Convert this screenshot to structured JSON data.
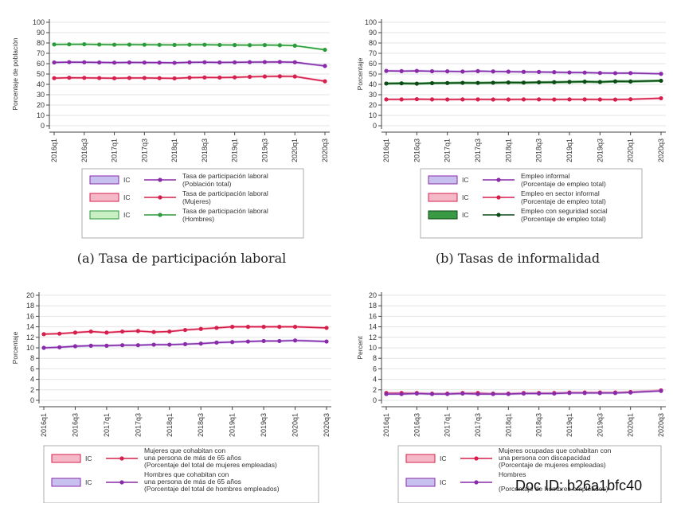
{
  "watermark": "Doc ID: b26a1bfc40",
  "chart_data": [
    {
      "type": "line",
      "caption": "(a) Tasa de participación laboral",
      "ylabel": "Porcentaje de población",
      "ylim": [
        0,
        100
      ],
      "yticks": [
        0,
        10,
        20,
        30,
        40,
        50,
        60,
        70,
        80,
        90,
        100
      ],
      "x": [
        "2016q1",
        "2016q2",
        "2016q3",
        "2016q4",
        "2017q1",
        "2017q2",
        "2017q3",
        "2017q4",
        "2018q1",
        "2018q2",
        "2018q3",
        "2018q4",
        "2019q1",
        "2019q2",
        "2019q3",
        "2019q4",
        "2020q1",
        "2020q3"
      ],
      "xticklabels": [
        "2016q1",
        "2016q3",
        "2017q1",
        "2017q3",
        "2018q1",
        "2018q3",
        "2019q1",
        "2019q3",
        "2020q1",
        "2020q3"
      ],
      "series": [
        {
          "name": "Tasa de participación laboral (Población total)",
          "line1": "Tasa de participación laboral",
          "line2": "(Población total)",
          "color": "#8a2aa8",
          "ci": "#c8c0ee",
          "values": [
            61.2,
            61.5,
            61.4,
            61.2,
            61.0,
            61.2,
            61.1,
            61.0,
            60.8,
            61.3,
            61.4,
            61.2,
            61.3,
            61.5,
            61.6,
            61.7,
            61.4,
            57.8
          ]
        },
        {
          "name": "Tasa de participación laboral (Mujeres)",
          "line1": "Tasa de participación laboral",
          "line2": "(Mujeres)",
          "color": "#d61f4c",
          "ci": "#f5b8c6",
          "values": [
            46.0,
            46.4,
            46.3,
            46.1,
            45.9,
            46.2,
            46.2,
            46.0,
            45.8,
            46.5,
            46.7,
            46.6,
            46.8,
            47.3,
            47.6,
            47.8,
            47.6,
            43.0
          ]
        },
        {
          "name": "Tasa de participación laboral (Hombres)",
          "line1": "Tasa de participación laboral",
          "line2": "(Hombres)",
          "color": "#2a9a3a",
          "ci": "#c8f0c4",
          "values": [
            78.6,
            78.7,
            78.8,
            78.5,
            78.3,
            78.4,
            78.3,
            78.2,
            78.1,
            78.3,
            78.3,
            78.1,
            78.0,
            77.9,
            78.0,
            77.8,
            77.4,
            73.4
          ]
        }
      ],
      "legend_ci_label": "IC"
    },
    {
      "type": "line",
      "caption": "(b) Tasas de informalidad",
      "ylabel": "Porcentaje",
      "ylim": [
        0,
        100
      ],
      "yticks": [
        0,
        10,
        20,
        30,
        40,
        50,
        60,
        70,
        80,
        90,
        100
      ],
      "x": [
        "2016q1",
        "2016q2",
        "2016q3",
        "2016q4",
        "2017q1",
        "2017q2",
        "2017q3",
        "2017q4",
        "2018q1",
        "2018q2",
        "2018q3",
        "2018q4",
        "2019q1",
        "2019q2",
        "2019q3",
        "2019q4",
        "2020q1",
        "2020q3"
      ],
      "xticklabels": [
        "2016q1",
        "2016q3",
        "2017q1",
        "2017q3",
        "2018q1",
        "2018q3",
        "2019q1",
        "2019q3",
        "2020q1",
        "2020q3"
      ],
      "series": [
        {
          "name": "Empleo informal (Porcentaje de empleo total)",
          "line1": "Empleo informal",
          "line2": "(Porcentaje de empleo total)",
          "color": "#8a2aa8",
          "ci": "#c8c0ee",
          "values": [
            53.0,
            52.8,
            53.0,
            52.7,
            52.6,
            52.4,
            52.8,
            52.5,
            52.3,
            52.1,
            52.0,
            51.8,
            51.5,
            51.4,
            51.0,
            50.8,
            50.9,
            50.2
          ]
        },
        {
          "name": "Empleo en sector informal (Porcentaje de empleo total)",
          "line1": "Empleo en sector informal",
          "line2": "(Porcentaje de empleo total)",
          "color": "#d61f4c",
          "ci": "#f5b8c6",
          "values": [
            25.5,
            25.5,
            25.7,
            25.5,
            25.4,
            25.5,
            25.5,
            25.4,
            25.4,
            25.5,
            25.5,
            25.4,
            25.5,
            25.5,
            25.4,
            25.3,
            25.6,
            26.6
          ]
        },
        {
          "name": "Empleo con seguridad social (Porcentaje de empleo total)",
          "line1": "Empleo con seguridad social",
          "line2": "(Porcentaje de empleo total)",
          "color": "#0c4a16",
          "ci": "#3a9a44",
          "values": [
            40.8,
            41.0,
            40.7,
            41.2,
            41.3,
            41.5,
            41.4,
            41.6,
            41.8,
            41.7,
            42.0,
            42.1,
            42.4,
            42.6,
            42.3,
            42.9,
            42.8,
            43.5
          ]
        }
      ],
      "legend_ci_label": "IC"
    },
    {
      "type": "line",
      "caption": "",
      "ylabel": "Porcentaje",
      "ylim": [
        0,
        20
      ],
      "yticks": [
        0,
        2,
        4,
        6,
        8,
        10,
        12,
        14,
        16,
        18,
        20
      ],
      "x": [
        "2016q1",
        "2016q2",
        "2016q3",
        "2016q4",
        "2017q1",
        "2017q2",
        "2017q3",
        "2017q4",
        "2018q1",
        "2018q2",
        "2018q3",
        "2018q4",
        "2019q1",
        "2019q2",
        "2019q3",
        "2019q4",
        "2020q1",
        "2020q3"
      ],
      "xticklabels": [
        "2016q1",
        "2016q3",
        "2017q1",
        "2017q3",
        "2018q1",
        "2018q3",
        "2019q1",
        "2019q3",
        "2020q1",
        "2020q3"
      ],
      "series": [
        {
          "name": "Mujeres que cohabitan con una persona de más de 65 años (Porcentaje del total de mujeres empleadas)",
          "line1": "Mujeres que cohabitan con",
          "line2": "una persona de más de 65 años",
          "line3": "(Porcentaje del total de mujeres empleadas)",
          "color": "#d61f4c",
          "ci": "#f5b8c6",
          "values": [
            12.6,
            12.7,
            12.9,
            13.1,
            12.9,
            13.1,
            13.2,
            13.0,
            13.1,
            13.4,
            13.6,
            13.8,
            14.0,
            14.0,
            14.0,
            14.0,
            14.0,
            13.8
          ]
        },
        {
          "name": "Hombres que cohabitan con una persona de más de 65 años (Porcentaje del total de hombres empleados)",
          "line1": "Hombres que cohabitan con",
          "line2": "una persona de más de 65 años",
          "line3": "(Porcentaje del total de hombres empleados)",
          "color": "#8a2aa8",
          "ci": "#c8c0ee",
          "values": [
            10.0,
            10.1,
            10.3,
            10.4,
            10.4,
            10.5,
            10.5,
            10.6,
            10.6,
            10.7,
            10.8,
            11.0,
            11.1,
            11.2,
            11.3,
            11.3,
            11.4,
            11.2
          ]
        }
      ],
      "legend_ci_label": "IC"
    },
    {
      "type": "line",
      "caption": "",
      "ylabel": "Percent",
      "ylim": [
        0,
        20
      ],
      "yticks": [
        0,
        2,
        4,
        6,
        8,
        10,
        12,
        14,
        16,
        18,
        20
      ],
      "x": [
        "2016q1",
        "2016q2",
        "2016q3",
        "2016q4",
        "2017q1",
        "2017q2",
        "2017q3",
        "2017q4",
        "2018q1",
        "2018q2",
        "2018q3",
        "2018q4",
        "2019q1",
        "2019q2",
        "2019q3",
        "2019q4",
        "2020q1",
        "2020q3"
      ],
      "xticklabels": [
        "2016q1",
        "2016q3",
        "2017q1",
        "2017q3",
        "2018q1",
        "2018q3",
        "2019q1",
        "2019q3",
        "2020q1",
        "2020q3"
      ],
      "series": [
        {
          "name": "Mujeres ocupadas que cohabitan con una persona con discapacidad (Porcentaje de mujeres empleadas)",
          "line1": "Mujeres ocupadas que cohabitan con",
          "line2": "una persona con discapacidad",
          "line3": "(Porcentaje de mujeres empleadas)",
          "color": "#d61f4c",
          "ci": "#f5b8c6",
          "values": [
            1.4,
            1.4,
            1.4,
            1.3,
            1.3,
            1.4,
            1.4,
            1.3,
            1.3,
            1.4,
            1.4,
            1.4,
            1.5,
            1.5,
            1.5,
            1.5,
            1.6,
            1.9
          ]
        },
        {
          "name": "Hombres (Porcentaje de hombres empleados)",
          "line1": "Hombres",
          "line2": "",
          "line3": "(Porcentaje de hombres empleados)",
          "color": "#8a2aa8",
          "ci": "#c8c0ee",
          "values": [
            1.2,
            1.2,
            1.3,
            1.2,
            1.2,
            1.3,
            1.2,
            1.2,
            1.2,
            1.3,
            1.3,
            1.3,
            1.4,
            1.4,
            1.4,
            1.4,
            1.5,
            1.8
          ]
        }
      ],
      "legend_ci_label": "IC"
    }
  ]
}
